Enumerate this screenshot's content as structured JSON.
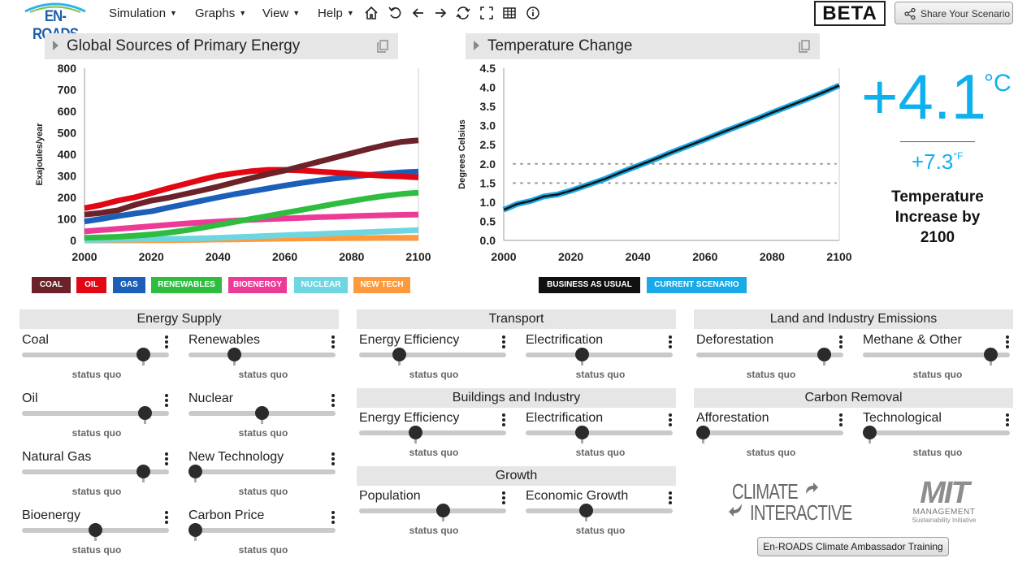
{
  "app": {
    "logo_text": "EN-ROADS",
    "beta": "BETA",
    "share_label": "Share Your Scenario"
  },
  "menu": [
    {
      "label": "Simulation"
    },
    {
      "label": "Graphs"
    },
    {
      "label": "View"
    },
    {
      "label": "Help"
    }
  ],
  "toolbar_icons": [
    "home-icon",
    "undo-icon",
    "back-icon",
    "forward-icon",
    "compare-icon",
    "fullscreen-icon",
    "table-icon",
    "info-icon"
  ],
  "graphs": {
    "left_title": "Global Sources of Primary Energy",
    "right_title": "Temperature Change"
  },
  "temperature": {
    "celsius": "+4.1",
    "celsius_unit": "°C",
    "fahrenheit": "+7.3",
    "fahrenheit_unit": "°F",
    "caption": "Temperature Increase by 2100"
  },
  "chart_data": [
    {
      "type": "line",
      "title": "Global Sources of Primary Energy",
      "xlabel": "",
      "ylabel": "Exajoules/year",
      "xlim": [
        2000,
        2100
      ],
      "ylim": [
        0,
        800
      ],
      "x_ticks": [
        2000,
        2020,
        2040,
        2060,
        2080,
        2100
      ],
      "y_ticks": [
        0,
        100,
        200,
        300,
        400,
        500,
        600,
        700,
        800
      ],
      "grid": false,
      "legend": "bottom",
      "x": [
        2000,
        2005,
        2010,
        2015,
        2020,
        2025,
        2030,
        2035,
        2040,
        2045,
        2050,
        2055,
        2060,
        2065,
        2070,
        2075,
        2080,
        2085,
        2090,
        2095,
        2100
      ],
      "series": [
        {
          "name": "COAL",
          "color": "#6b2329",
          "values": [
            120,
            128,
            140,
            165,
            185,
            198,
            215,
            232,
            250,
            270,
            290,
            308,
            325,
            345,
            365,
            385,
            405,
            425,
            443,
            458,
            465
          ]
        },
        {
          "name": "OIL",
          "color": "#e30613",
          "values": [
            150,
            165,
            185,
            200,
            220,
            242,
            262,
            282,
            300,
            312,
            322,
            328,
            328,
            325,
            320,
            315,
            310,
            305,
            300,
            297,
            293
          ]
        },
        {
          "name": "GAS",
          "color": "#1c5fb8",
          "values": [
            88,
            100,
            113,
            125,
            135,
            152,
            168,
            184,
            200,
            215,
            228,
            242,
            255,
            267,
            278,
            288,
            296,
            304,
            310,
            316,
            320
          ]
        },
        {
          "name": "RENEWABLES",
          "color": "#2ebd3f",
          "values": [
            12,
            14,
            17,
            22,
            28,
            36,
            46,
            58,
            72,
            86,
            100,
            114,
            128,
            142,
            156,
            170,
            183,
            196,
            207,
            216,
            222
          ]
        },
        {
          "name": "BIOENERGY",
          "color": "#ec3a96",
          "values": [
            42,
            48,
            54,
            60,
            66,
            72,
            78,
            83,
            88,
            92,
            96,
            99,
            102,
            105,
            108,
            110,
            113,
            115,
            117,
            119,
            120
          ]
        },
        {
          "name": "NUCLEAR",
          "color": "#6fd6e1",
          "values": [
            2,
            3,
            4,
            5,
            6,
            7,
            8,
            10,
            12,
            15,
            18,
            21,
            24,
            27,
            30,
            33,
            36,
            39,
            42,
            45,
            48
          ]
        },
        {
          "name": "NEW TECH",
          "color": "#ff9a3c",
          "values": [
            0,
            0,
            0,
            0,
            1,
            1,
            2,
            3,
            4,
            5,
            6,
            7,
            8,
            9,
            10,
            10,
            11,
            11,
            12,
            12,
            12
          ]
        }
      ]
    },
    {
      "type": "line",
      "title": "Temperature Change",
      "xlabel": "",
      "ylabel": "Degrees Celsius",
      "xlim": [
        2000,
        2100
      ],
      "ylim": [
        0,
        4.5
      ],
      "x_ticks": [
        2000,
        2020,
        2040,
        2060,
        2080,
        2100
      ],
      "y_ticks": [
        "0.0",
        "0.5",
        "1.0",
        "1.5",
        "2.0",
        "2.5",
        "3.0",
        "3.5",
        "4.0",
        "4.5"
      ],
      "reference_lines": [
        1.5,
        2.0
      ],
      "grid": false,
      "legend": "bottom",
      "x": [
        2000,
        2004,
        2008,
        2012,
        2016,
        2020,
        2025,
        2030,
        2035,
        2040,
        2045,
        2050,
        2055,
        2060,
        2065,
        2070,
        2075,
        2080,
        2085,
        2090,
        2095,
        2100
      ],
      "series": [
        {
          "name": "BUSINESS AS USUAL",
          "color": "#111111",
          "values": [
            0.8,
            0.95,
            1.03,
            1.15,
            1.2,
            1.3,
            1.45,
            1.6,
            1.78,
            1.95,
            2.12,
            2.3,
            2.47,
            2.64,
            2.82,
            2.99,
            3.16,
            3.34,
            3.51,
            3.68,
            3.86,
            4.05
          ]
        },
        {
          "name": "CURRENT SCENARIO",
          "color": "#18a9e6",
          "values": [
            0.8,
            0.95,
            1.03,
            1.15,
            1.2,
            1.3,
            1.45,
            1.6,
            1.78,
            1.95,
            2.12,
            2.3,
            2.47,
            2.64,
            2.82,
            2.99,
            3.16,
            3.34,
            3.51,
            3.68,
            3.86,
            4.05
          ]
        }
      ]
    }
  ],
  "sections": {
    "energy_supply": "Energy Supply",
    "transport": "Transport",
    "buildings": "Buildings and Industry",
    "growth": "Growth",
    "land": "Land and Industry Emissions",
    "carbon_removal": "Carbon Removal"
  },
  "sliders": {
    "coal": {
      "label": "Coal",
      "status": "status quo",
      "value": 0.86
    },
    "renewables": {
      "label": "Renewables",
      "status": "status quo",
      "value": 0.29
    },
    "oil": {
      "label": "Oil",
      "status": "status quo",
      "value": 0.87
    },
    "nuclear": {
      "label": "Nuclear",
      "status": "status quo",
      "value": 0.5
    },
    "natural_gas": {
      "label": "Natural Gas",
      "status": "status quo",
      "value": 0.86
    },
    "new_technology": {
      "label": "New Technology",
      "status": "status quo",
      "value": 0.0
    },
    "bioenergy": {
      "label": "Bioenergy",
      "status": "status quo",
      "value": 0.5
    },
    "carbon_price": {
      "label": "Carbon Price",
      "status": "status quo",
      "value": 0.0
    },
    "transport_efficiency": {
      "label": "Energy Efficiency",
      "status": "status quo",
      "value": 0.25
    },
    "transport_electrification": {
      "label": "Electrification",
      "status": "status quo",
      "value": 0.37
    },
    "buildings_efficiency": {
      "label": "Energy Efficiency",
      "status": "status quo",
      "value": 0.37
    },
    "buildings_electrification": {
      "label": "Electrification",
      "status": "status quo",
      "value": 0.37
    },
    "population": {
      "label": "Population",
      "status": "status quo",
      "value": 0.58
    },
    "economic_growth": {
      "label": "Economic Growth",
      "status": "status quo",
      "value": 0.4
    },
    "deforestation": {
      "label": "Deforestation",
      "status": "status quo",
      "value": 0.91
    },
    "methane_other": {
      "label": "Methane & Other",
      "status": "status quo",
      "value": 0.91
    },
    "afforestation": {
      "label": "Afforestation",
      "status": "status quo",
      "value": 0.0
    },
    "technological": {
      "label": "Technological",
      "status": "status quo",
      "value": 0.0
    }
  },
  "footer": {
    "climate_interactive_line1": "CLIMATE",
    "climate_interactive_line2": "INTERACTIVE",
    "mit_big": "MIT",
    "mit_line1": "MANAGEMENT",
    "mit_line2": "Sustainability Initiative",
    "training_button": "En-ROADS Climate Ambassador Training"
  }
}
